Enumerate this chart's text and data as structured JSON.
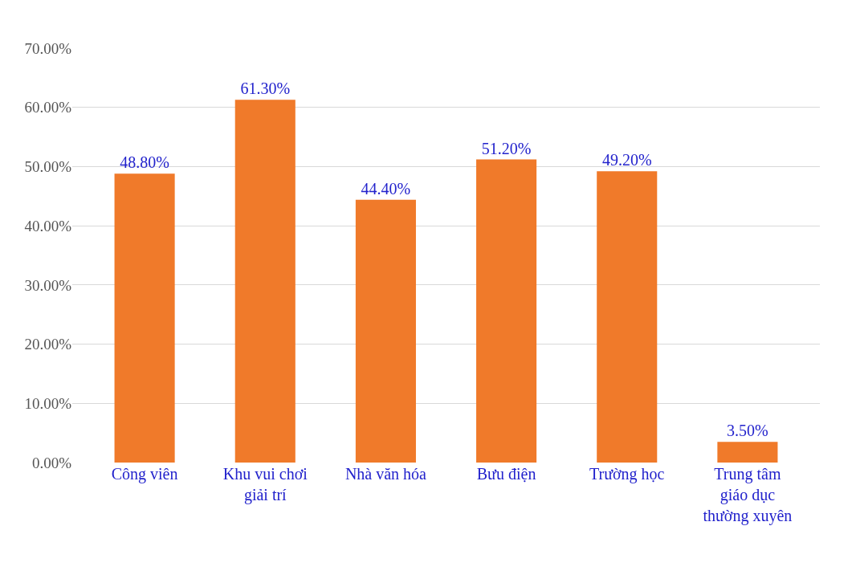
{
  "chart_data": {
    "type": "bar",
    "categories": [
      "Công viên",
      "Khu vui chơi giải trí",
      "Nhà văn hóa",
      "Bưu điện",
      "Trường học",
      "Trung tâm giáo dục thường xuyên"
    ],
    "values": [
      48.8,
      61.3,
      44.4,
      51.2,
      49.2,
      3.5
    ],
    "value_labels": [
      "48.80%",
      "61.30%",
      "44.40%",
      "51.20%",
      "49.20%",
      "3.50%"
    ],
    "color": "#f07a2a",
    "ylim": [
      0,
      70
    ],
    "yticks": [
      {
        "value": 0,
        "label": "0.00%"
      },
      {
        "value": 10,
        "label": "10.00%"
      },
      {
        "value": 20,
        "label": "20.00%"
      },
      {
        "value": 30,
        "label": "30.00%"
      },
      {
        "value": 40,
        "label": "40.00%"
      },
      {
        "value": 50,
        "label": "50.00%"
      },
      {
        "value": 60,
        "label": "60.00%"
      },
      {
        "value": 70,
        "label": "70.00%"
      }
    ],
    "grid": "y"
  }
}
